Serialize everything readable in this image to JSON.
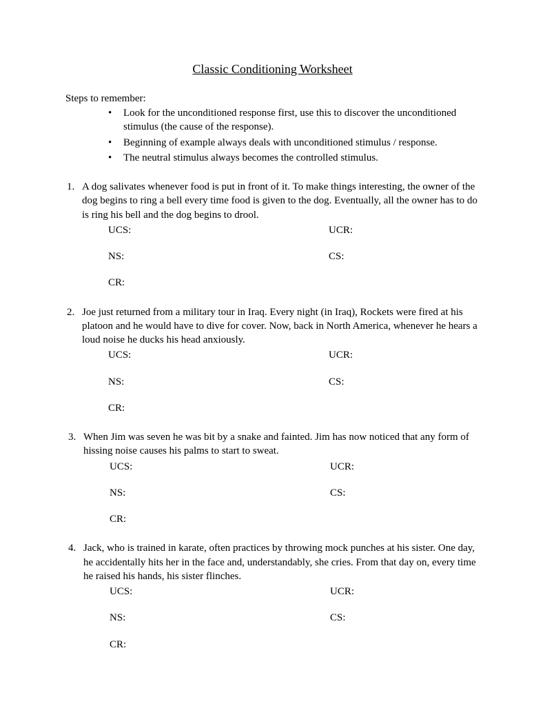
{
  "title": "Classic Conditioning Worksheet",
  "steps_heading": "Steps to remember:",
  "bullets": [
    "Look for the unconditioned response first, use this to discover the unconditioned stimulus (the cause of the response).",
    "Beginning of example always deals with unconditioned stimulus / response.",
    "The neutral stimulus always becomes the controlled stimulus."
  ],
  "labels": {
    "ucs": "UCS:",
    "ucr": "UCR:",
    "ns": "NS:",
    "cs": "CS:",
    "cr": "CR:"
  },
  "questions": [
    {
      "num": "1.",
      "text": "A dog salivates whenever food is put in front of it.  To make things interesting, the owner of the dog begins to ring a bell every time food is given to the dog.  Eventually, all the owner has to do is ring his bell and the dog begins to drool."
    },
    {
      "num": "2.",
      "text": "Joe just returned from a military tour in Iraq.  Every night (in Iraq), Rockets were fired at his platoon and he would have to dive for cover.  Now, back in North America, whenever he hears a loud noise he ducks his head anxiously."
    },
    {
      "num": "3.",
      "text": "When Jim was seven he was bit by a snake and fainted.  Jim has now noticed that any form of hissing noise causes his palms to start to sweat."
    },
    {
      "num": "4.",
      "text": "Jack, who is trained in karate, often practices by throwing mock punches at his sister.  One day, he accidentally hits her in the face and, understandably, she cries.  From that day on, every time he raised his hands, his sister flinches."
    }
  ]
}
